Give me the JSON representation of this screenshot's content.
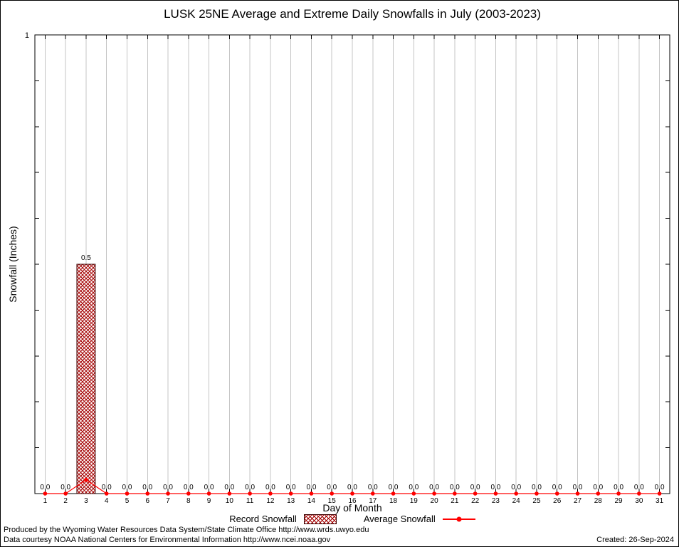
{
  "chart_data": {
    "type": "bar",
    "title": "LUSK 25NE Average and Extreme Daily Snowfalls in July (2003-2023)",
    "xlabel": "Day of Month",
    "ylabel": "Snowfall (Inches)",
    "ylim": [
      0,
      1
    ],
    "y_axis_top_label": "1",
    "minor_tick_step": 0.1,
    "grid_color": "#c4c4c4",
    "grid": true,
    "legend_position": "bottom-center",
    "categories": [
      1,
      2,
      3,
      4,
      5,
      6,
      7,
      8,
      9,
      10,
      11,
      12,
      13,
      14,
      15,
      16,
      17,
      18,
      19,
      20,
      21,
      22,
      23,
      24,
      25,
      26,
      27,
      28,
      29,
      30,
      31
    ],
    "series": [
      {
        "name": "Record Snowfall",
        "type": "bar",
        "style": "crosshatch",
        "color": "#a40000",
        "border_color": "#3c0000",
        "values": [
          0,
          0,
          0.5,
          0,
          0,
          0,
          0,
          0,
          0,
          0,
          0,
          0,
          0,
          0,
          0,
          0,
          0,
          0,
          0,
          0,
          0,
          0,
          0,
          0,
          0,
          0,
          0,
          0,
          0,
          0,
          0
        ]
      },
      {
        "name": "Average Snowfall",
        "type": "line",
        "marker": "point",
        "color": "#ff0000",
        "values": [
          0,
          0,
          0.03,
          0,
          0,
          0,
          0,
          0,
          0,
          0,
          0,
          0,
          0,
          0,
          0,
          0,
          0,
          0,
          0,
          0,
          0,
          0,
          0,
          0,
          0,
          0,
          0,
          0,
          0,
          0,
          0
        ]
      }
    ],
    "value_labels": [
      "0.0",
      "0.0",
      "0.5",
      "0.0",
      "0.0",
      "0.0",
      "0.0",
      "0.0",
      "0.0",
      "0.0",
      "0.0",
      "0.0",
      "0.0",
      "0.0",
      "0.0",
      "0.0",
      "0.0",
      "0.0",
      "0.0",
      "0.0",
      "0.0",
      "0.0",
      "0.0",
      "0.0",
      "0.0",
      "0.0",
      "0.0",
      "0.0",
      "0.0",
      "0.0",
      "0.0"
    ]
  },
  "footer": {
    "produced_by": "Produced by the Wyoming Water Resources Data System/State Climate Office http://www.wrds.uwyo.edu",
    "data_courtesy": "Data courtesy NOAA National Centers for Environmental Information http://www.ncei.noaa.gov",
    "created": "Created: 26-Sep-2024"
  }
}
